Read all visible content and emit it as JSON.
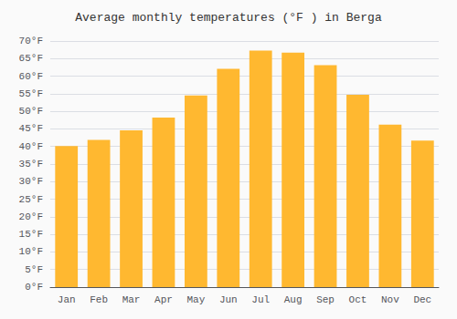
{
  "chart_data": {
    "type": "bar",
    "title": "Average monthly temperatures (°F ) in Berga",
    "categories": [
      "Jan",
      "Feb",
      "Mar",
      "Apr",
      "May",
      "Jun",
      "Jul",
      "Aug",
      "Sep",
      "Oct",
      "Nov",
      "Dec"
    ],
    "values": [
      40.1,
      41.9,
      44.6,
      48.2,
      54.5,
      62.1,
      67.3,
      66.7,
      63.1,
      54.7,
      46.2,
      41.7
    ],
    "color": "#FFB830",
    "ylim": [
      0,
      70
    ],
    "yticks": [
      {
        "value": 0,
        "label": "0°F"
      },
      {
        "value": 5,
        "label": "5°F"
      },
      {
        "value": 10,
        "label": "10°F"
      },
      {
        "value": 15,
        "label": "15°F"
      },
      {
        "value": 20,
        "label": "20°F"
      },
      {
        "value": 25,
        "label": "25°F"
      },
      {
        "value": 30,
        "label": "30°F"
      },
      {
        "value": 35,
        "label": "35°F"
      },
      {
        "value": 40,
        "label": "40°F"
      },
      {
        "value": 45,
        "label": "45°F"
      },
      {
        "value": 50,
        "label": "50°F"
      },
      {
        "value": 55,
        "label": "55°F"
      },
      {
        "value": 60,
        "label": "60°F"
      },
      {
        "value": 65,
        "label": "65°F"
      },
      {
        "value": 70,
        "label": "70°F"
      }
    ],
    "grid": true
  }
}
